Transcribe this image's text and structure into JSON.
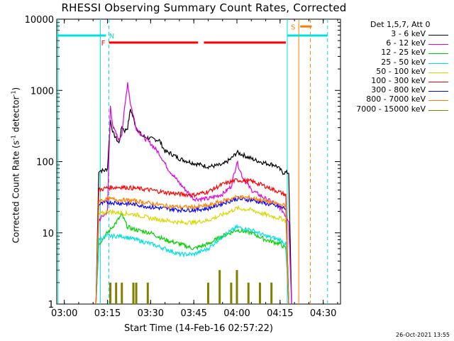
{
  "title": "RHESSI Observing Summary Count Rates, Corrected",
  "timestamp": "26-Oct-2021 13:55",
  "legend": {
    "title": "Det 1,5,7, Att 0",
    "items": [
      {
        "label": "3 - 6 keV",
        "color": "#000000"
      },
      {
        "label": "6 - 12 keV",
        "color": "#e000e0"
      },
      {
        "label": "12 - 25 keV",
        "color": "#00d000"
      },
      {
        "label": "25 - 50 keV",
        "color": "#00e0e0"
      },
      {
        "label": "50 - 100 keV",
        "color": "#d8d800"
      },
      {
        "label": "100 - 300 keV",
        "color": "#ff0000"
      },
      {
        "label": "300 - 800 keV",
        "color": "#0000ff"
      },
      {
        "label": "800 - 7000 keV",
        "color": "#ff8000"
      },
      {
        "label": "7000 - 15000 keV",
        "color": "#808000"
      }
    ]
  },
  "chart_data": {
    "type": "line",
    "title": "RHESSI Observing Summary Count Rates, Corrected",
    "xlabel": "Start Time (14-Feb-16 02:57:22)",
    "ylabel": "Corrected Count Rate (s-1 detector-1)",
    "yscale": "log",
    "xlim": [
      "02:57:22",
      "04:36:00"
    ],
    "ylim": [
      1,
      10000
    ],
    "x_ticks": [
      "03:00",
      "03:15",
      "03:30",
      "03:45",
      "04:00",
      "04:15",
      "04:30"
    ],
    "y_ticks": [
      "1",
      "10",
      "100",
      "1000",
      "10000"
    ],
    "series": [
      {
        "name": "3 - 6 keV",
        "color": "#000000",
        "x": [
          "03:11",
          "03:12",
          "03:14",
          "03:15",
          "03:16",
          "03:17",
          "03:19",
          "03:20",
          "03:21",
          "03:22",
          "03:23",
          "03:25",
          "03:27",
          "03:30",
          "03:33",
          "03:35",
          "03:37",
          "03:40",
          "03:45",
          "03:50",
          "03:55",
          "03:58",
          "04:00",
          "04:02",
          "04:05",
          "04:08",
          "04:10",
          "04:13",
          "04:14",
          "04:16",
          "04:17",
          "04:18",
          "04:19"
        ],
        "y": [
          1,
          75,
          75,
          80,
          380,
          250,
          180,
          310,
          270,
          300,
          550,
          300,
          230,
          210,
          200,
          140,
          130,
          110,
          95,
          85,
          90,
          110,
          135,
          125,
          110,
          100,
          95,
          90,
          85,
          70,
          70,
          70,
          1
        ]
      },
      {
        "name": "6 - 12 keV",
        "color": "#e000e0",
        "x": [
          "03:11",
          "03:12",
          "03:15",
          "03:16",
          "03:17",
          "03:19",
          "03:20",
          "03:22",
          "03:23",
          "03:25",
          "03:27",
          "03:30",
          "03:33",
          "03:36",
          "03:40",
          "03:45",
          "03:50",
          "03:55",
          "03:58",
          "04:00",
          "04:02",
          "04:05",
          "04:10",
          "04:14",
          "04:16",
          "04:18",
          "04:19"
        ],
        "y": [
          1,
          15,
          20,
          600,
          300,
          200,
          250,
          1300,
          650,
          300,
          230,
          180,
          130,
          80,
          50,
          30,
          30,
          35,
          45,
          100,
          60,
          40,
          30,
          25,
          20,
          15,
          1
        ]
      },
      {
        "name": "12 - 25 keV",
        "color": "#00d000",
        "x": [
          "03:11",
          "03:12",
          "03:15",
          "03:18",
          "03:20",
          "03:22",
          "03:25",
          "03:30",
          "03:35",
          "03:40",
          "03:45",
          "03:50",
          "03:55",
          "04:00",
          "04:05",
          "04:10",
          "04:15",
          "04:17",
          "04:18"
        ],
        "y": [
          1,
          7,
          10,
          14,
          18,
          12,
          11,
          10,
          8,
          7,
          6,
          7,
          9,
          11,
          10,
          8,
          7,
          6,
          1
        ]
      },
      {
        "name": "25 - 50 keV",
        "color": "#00e0e0",
        "x": [
          "03:11",
          "03:12",
          "03:15",
          "03:20",
          "03:25",
          "03:30",
          "03:35",
          "03:40",
          "03:45",
          "03:50",
          "03:55",
          "04:00",
          "04:05",
          "04:10",
          "04:15",
          "04:17",
          "04:18"
        ],
        "y": [
          1,
          8,
          9,
          9,
          8,
          7,
          6,
          5,
          5,
          6,
          9,
          12,
          11,
          9,
          8,
          7,
          1
        ]
      },
      {
        "name": "50 - 100 keV",
        "color": "#d8d800",
        "x": [
          "03:11",
          "03:12",
          "03:15",
          "03:20",
          "03:25",
          "03:30",
          "03:35",
          "03:40",
          "03:45",
          "03:50",
          "03:55",
          "04:00",
          "04:05",
          "04:10",
          "04:15",
          "04:17",
          "04:18"
        ],
        "y": [
          1,
          18,
          20,
          19,
          18,
          16,
          15,
          14,
          14,
          15,
          18,
          22,
          21,
          18,
          16,
          15,
          1
        ]
      },
      {
        "name": "100 - 300 keV",
        "color": "#ff0000",
        "x": [
          "03:11",
          "03:12",
          "03:15",
          "03:20",
          "03:25",
          "03:30",
          "03:35",
          "03:40",
          "03:45",
          "03:50",
          "03:55",
          "04:00",
          "04:05",
          "04:10",
          "04:15",
          "04:17",
          "04:18"
        ],
        "y": [
          1,
          40,
          43,
          44,
          42,
          40,
          37,
          35,
          34,
          38,
          48,
          55,
          53,
          45,
          37,
          34,
          1
        ]
      },
      {
        "name": "300 - 800 keV",
        "color": "#0000ff",
        "x": [
          "03:11",
          "03:12",
          "03:15",
          "03:20",
          "03:25",
          "03:30",
          "03:35",
          "03:40",
          "03:45",
          "03:50",
          "03:55",
          "04:00",
          "04:05",
          "04:10",
          "04:15",
          "04:17",
          "04:18"
        ],
        "y": [
          1,
          25,
          27,
          26,
          25,
          23,
          22,
          21,
          21,
          22,
          26,
          30,
          29,
          26,
          23,
          22,
          1
        ]
      },
      {
        "name": "800 - 7000 keV",
        "color": "#ff8000",
        "x": [
          "03:11",
          "03:12",
          "03:15",
          "03:20",
          "03:25",
          "03:30",
          "03:35",
          "03:40",
          "03:45",
          "03:50",
          "03:55",
          "04:00",
          "04:05",
          "04:10",
          "04:15",
          "04:17",
          "04:18"
        ],
        "y": [
          1,
          28,
          30,
          29,
          28,
          26,
          24,
          23,
          23,
          24,
          28,
          32,
          31,
          28,
          25,
          24,
          1
        ]
      },
      {
        "name": "7000 - 15000 keV",
        "color": "#808000",
        "x": [
          "03:16",
          "03:17",
          "03:18",
          "03:20",
          "03:22",
          "03:24",
          "03:25",
          "03:27",
          "03:29",
          "03:50",
          "03:52",
          "03:54",
          "03:56",
          "03:58",
          "04:00",
          "04:02",
          "04:04",
          "04:06",
          "04:08",
          "04:10",
          "04:12"
        ],
        "y": [
          2,
          1,
          2,
          2,
          1,
          2,
          2,
          1,
          2,
          2,
          1,
          3,
          1,
          2,
          3,
          1,
          2,
          1,
          2,
          1,
          2
        ]
      }
    ],
    "flags": [
      {
        "label": "N",
        "color": "#00e0e0",
        "segments": [
          [
            "02:57:22",
            "03:14:30"
          ],
          [
            "04:17:30",
            "04:31:30"
          ]
        ],
        "level": 5900
      },
      {
        "label": "F",
        "color": "#ff0000",
        "segments": [
          [
            "03:15:30",
            "03:46:30"
          ],
          [
            "03:48:30",
            "04:17:00"
          ]
        ],
        "level": 4700
      },
      {
        "label": "S",
        "color": "#ff8000",
        "segments": [
          [
            "04:22:00",
            "04:26:00"
          ]
        ],
        "level": 7900
      }
    ],
    "vertical_lines": [
      {
        "time": "02:57:50",
        "color": "#00e0e0",
        "style": "solid"
      },
      {
        "time": "03:12:30",
        "color": "#00e0e0",
        "style": "solid"
      },
      {
        "time": "03:15:30",
        "color": "#00e0e0",
        "style": "dashed"
      },
      {
        "time": "04:17:30",
        "color": "#00e0e0",
        "style": "solid"
      },
      {
        "time": "04:21:30",
        "color": "#ff8000",
        "style": "solid"
      },
      {
        "time": "04:25:30",
        "color": "#ff8000",
        "style": "dashed"
      },
      {
        "time": "04:31:30",
        "color": "#00e0e0",
        "style": "dashed"
      }
    ],
    "grid": false,
    "legend_position": "right"
  }
}
